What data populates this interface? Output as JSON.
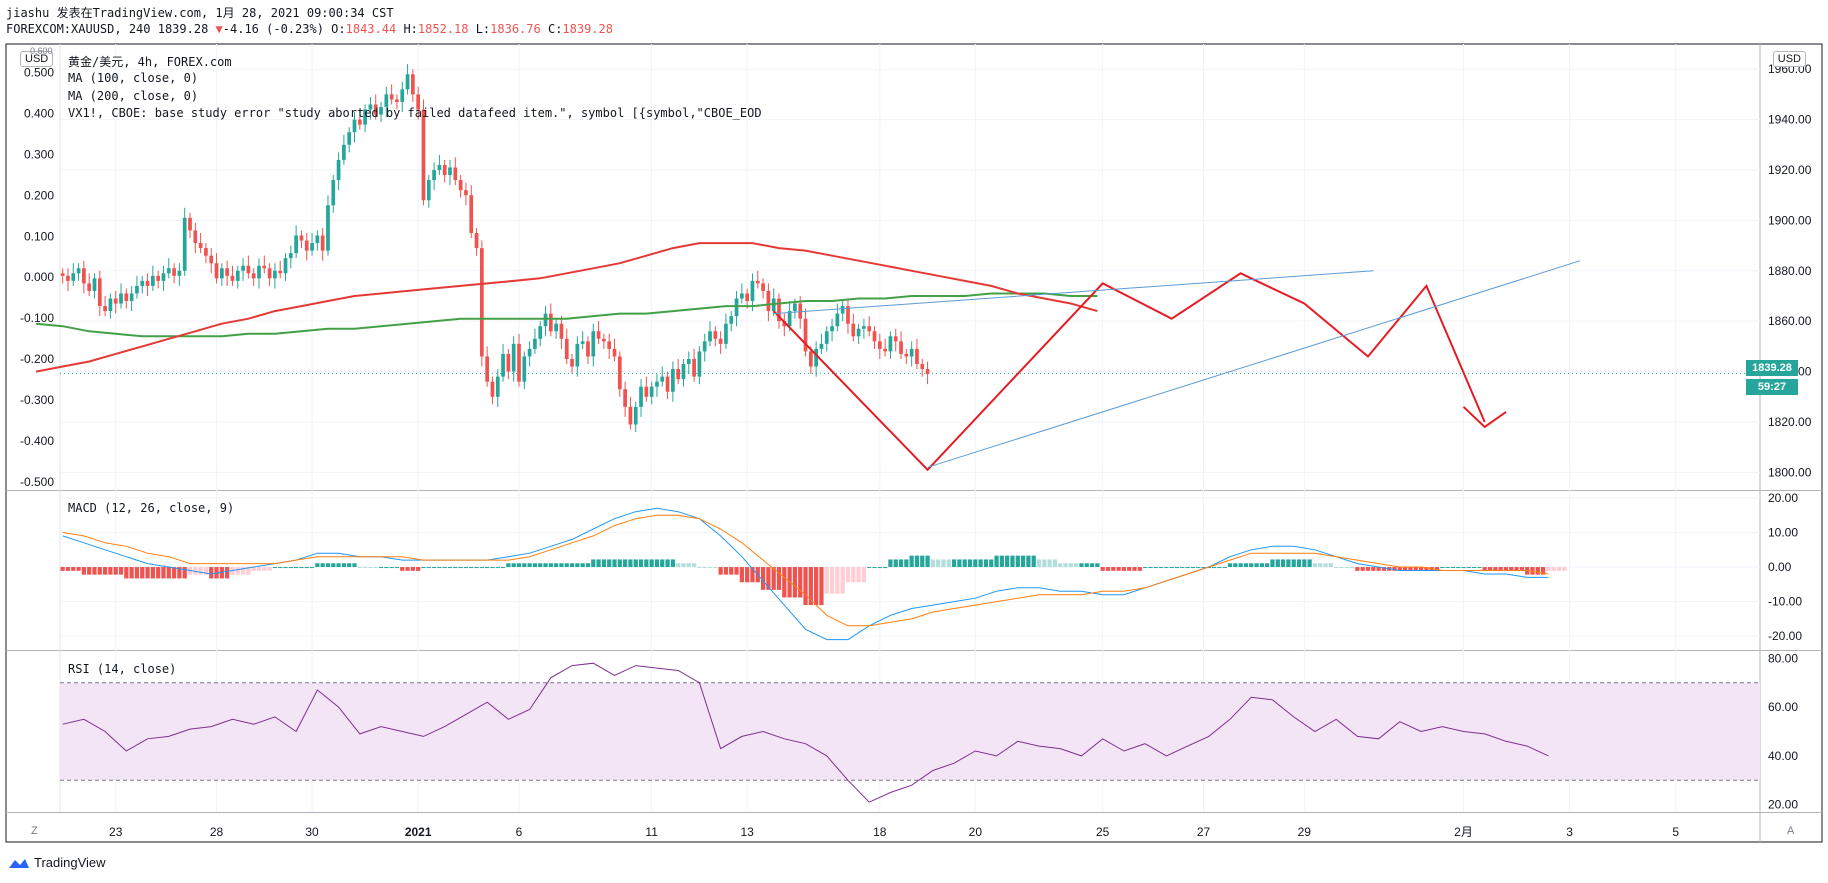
{
  "header": {
    "publish_line": "jiashu 发表在TradingView.com, 1月 28, 2021 09:00:34 CST",
    "symbol": "FOREXCOM:XAUUSD, 240",
    "last": "1839.28",
    "change_arrow": "▼",
    "change": "-4.16 (-0.23%)",
    "o_label": "O:",
    "o": "1843.44",
    "h_label": "H:",
    "h": "1852.18",
    "l_label": "L:",
    "l": "1836.76",
    "c_label": "C:",
    "c": "1839.28"
  },
  "legend": {
    "title": "黄金/美元, 4h, FOREX.com",
    "ma100": "MA (100, close, 0)",
    "ma200": "MA (200, close, 0)",
    "error": "VX1!, CBOE: base study error \"study aborted by failed datafeed item.\", symbol [{symbol,\"CBOE_EOD"
  },
  "badges": {
    "left_currency": "USD",
    "right_currency": "USD",
    "left_top_value": "0.600"
  },
  "price_tag": {
    "price": "1839.28",
    "countdown": "59:27"
  },
  "footer": {
    "brand": "TradingView",
    "left_corner": "Z",
    "right_corner": "A"
  },
  "colors": {
    "up": "#26a69a",
    "down": "#ef5350",
    "ma100": "#43a047",
    "ma200": "#e53935",
    "macd": "#2196f3",
    "signal": "#ff7f0e",
    "rsi": "#7e2f8e",
    "rsi_band": "#f3e5f5",
    "drawing": "#e51c23",
    "trendline": "#5b9bd5"
  },
  "chart_data": [
    {
      "type": "candlestick",
      "series_name": "黄金/美元, 4h, FOREX.com",
      "x_tick_labels": [
        "23",
        "28",
        "30",
        "2021",
        "6",
        "11",
        "13",
        "18",
        "20",
        "25",
        "27",
        "29",
        "2月",
        "3",
        "5"
      ],
      "x_tick_index": [
        10,
        29,
        47,
        67,
        86,
        111,
        129,
        154,
        172,
        196,
        215,
        234,
        264,
        284,
        304
      ],
      "y_right_ticks": [
        1800,
        1820,
        1840,
        1860,
        1880,
        1900,
        1920,
        1940,
        1960
      ],
      "y_right_labels": [
        "1800.00",
        "1820.00",
        "1840.00",
        "1860.00",
        "1880.00",
        "1900.00",
        "1920.00",
        "1940.00",
        "1960.00"
      ],
      "y_left_ticks": [
        -0.5,
        -0.4,
        -0.3,
        -0.2,
        -0.1,
        0,
        0.1,
        0.2,
        0.3,
        0.4,
        0.5
      ],
      "y_left_labels": [
        "-0.500",
        "-0.400",
        "-0.300",
        "-0.200",
        "-0.100",
        "0.000",
        "0.100",
        "0.200",
        "0.300",
        "0.400",
        "0.500"
      ],
      "ylim": [
        1793,
        1970
      ],
      "y_left_lim": [
        -0.52,
        0.57
      ],
      "last_price": 1839.28,
      "closes": [
        1878,
        1876,
        1879,
        1881,
        1875,
        1872,
        1877,
        1866,
        1864,
        1869,
        1867,
        1871,
        1868,
        1871,
        1874,
        1876,
        1874,
        1878,
        1876,
        1879,
        1881,
        1878,
        1880,
        1901,
        1896,
        1891,
        1889,
        1886,
        1883,
        1877,
        1881,
        1878,
        1876,
        1880,
        1882,
        1879,
        1877,
        1882,
        1881,
        1877,
        1880,
        1879,
        1885,
        1887,
        1894,
        1892,
        1888,
        1891,
        1894,
        1888,
        1906,
        1916,
        1924,
        1930,
        1935,
        1940,
        1938,
        1944,
        1946,
        1942,
        1945,
        1950,
        1948,
        1947,
        1952,
        1958,
        1950,
        1944,
        1908,
        1916,
        1920,
        1922,
        1918,
        1921,
        1916,
        1912,
        1910,
        1895,
        1889,
        1846,
        1836,
        1830,
        1838,
        1847,
        1840,
        1851,
        1836,
        1846,
        1849,
        1853,
        1858,
        1863,
        1856,
        1859,
        1853,
        1845,
        1842,
        1851,
        1852,
        1846,
        1856,
        1853,
        1852,
        1849,
        1846,
        1833,
        1826,
        1819,
        1826,
        1834,
        1830,
        1834,
        1836,
        1838,
        1832,
        1841,
        1837,
        1843,
        1845,
        1838,
        1848,
        1852,
        1856,
        1853,
        1851,
        1859,
        1862,
        1869,
        1871,
        1868,
        1876,
        1875,
        1872,
        1864,
        1869,
        1860,
        1858,
        1864,
        1867,
        1861,
        1848,
        1842,
        1849,
        1851,
        1856,
        1858,
        1863,
        1866,
        1859,
        1854,
        1857,
        1858,
        1856,
        1852,
        1849,
        1848,
        1854,
        1852,
        1847,
        1846,
        1849,
        1843,
        1841,
        1839
      ],
      "ma100": [
        1840,
        1842,
        1844,
        1847,
        1850,
        1853,
        1856,
        1859,
        1861,
        1864,
        1866,
        1868,
        1870,
        1871,
        1872,
        1873,
        1874,
        1875,
        1876,
        1877,
        1879,
        1881,
        1883,
        1886,
        1889,
        1891,
        1891,
        1891,
        1889,
        1888,
        1886,
        1884,
        1882,
        1880,
        1878,
        1876,
        1874,
        1871,
        1869,
        1867,
        1864
      ],
      "ma200": [
        1859,
        1858,
        1856,
        1855,
        1854,
        1854,
        1854,
        1854,
        1855,
        1855,
        1856,
        1857,
        1857,
        1858,
        1859,
        1860,
        1861,
        1861,
        1861,
        1861,
        1861,
        1862,
        1863,
        1863,
        1864,
        1865,
        1866,
        1866,
        1867,
        1868,
        1868,
        1869,
        1869,
        1870,
        1870,
        1870,
        1871,
        1871,
        1871,
        1870,
        1870
      ]
    },
    {
      "type": "line",
      "title": "MACD (12, 26, close, 9)",
      "y_ticks": [
        -20,
        -10,
        0,
        10,
        20
      ],
      "y_labels": [
        "-20.00",
        "-10.00",
        "0.00",
        "10.00",
        "20.00"
      ],
      "ylim": [
        -24,
        22
      ],
      "macd": [
        9,
        7,
        5,
        3,
        1,
        0,
        -1,
        -2,
        -1,
        0,
        1,
        2,
        4,
        4,
        3,
        3,
        2,
        2,
        2,
        2,
        2,
        3,
        4,
        6,
        8,
        11,
        14,
        16,
        17,
        16,
        14,
        9,
        3,
        -4,
        -11,
        -18,
        -21,
        -21,
        -17,
        -14,
        -12,
        -11,
        -10,
        -9,
        -7,
        -6,
        -6,
        -7,
        -7,
        -8,
        -8,
        -6,
        -4,
        -2,
        0,
        3,
        5,
        6,
        6,
        5,
        3,
        1,
        0,
        -1,
        -1,
        -1,
        -1,
        -2,
        -2,
        -3,
        -3
      ],
      "signal": [
        10,
        9,
        7,
        6,
        4,
        3,
        1,
        1,
        1,
        1,
        1,
        2,
        3,
        3,
        3,
        3,
        3,
        2,
        2,
        2,
        2,
        2,
        3,
        5,
        7,
        9,
        12,
        14,
        15,
        15,
        14,
        11,
        7,
        2,
        -3,
        -8,
        -14,
        -17,
        -17,
        -16,
        -15,
        -13,
        -12,
        -11,
        -10,
        -9,
        -8,
        -8,
        -8,
        -7,
        -7,
        -6,
        -4,
        -2,
        0,
        2,
        4,
        4,
        4,
        4,
        3,
        2,
        1,
        0,
        0,
        -1,
        -1,
        -1,
        -1,
        -1,
        -2
      ]
    },
    {
      "type": "line",
      "title": "RSI (14, close)",
      "y_ticks": [
        20,
        40,
        60,
        80
      ],
      "y_labels": [
        "20.00",
        "40.00",
        "60.00",
        "80.00"
      ],
      "ylim": [
        17,
        83
      ],
      "band": [
        30,
        70
      ],
      "rsi": [
        53,
        55,
        50,
        42,
        47,
        48,
        51,
        52,
        55,
        53,
        56,
        50,
        67,
        60,
        49,
        52,
        50,
        48,
        52,
        57,
        62,
        55,
        59,
        72,
        77,
        78,
        73,
        77,
        76,
        75,
        70,
        43,
        48,
        50,
        47,
        45,
        40,
        30,
        21,
        25,
        28,
        34,
        37,
        42,
        40,
        46,
        44,
        43,
        40,
        47,
        42,
        45,
        40,
        44,
        48,
        55,
        64,
        63,
        56,
        50,
        55,
        48,
        47,
        54,
        50,
        52,
        50,
        49,
        46,
        44,
        40
      ]
    }
  ]
}
